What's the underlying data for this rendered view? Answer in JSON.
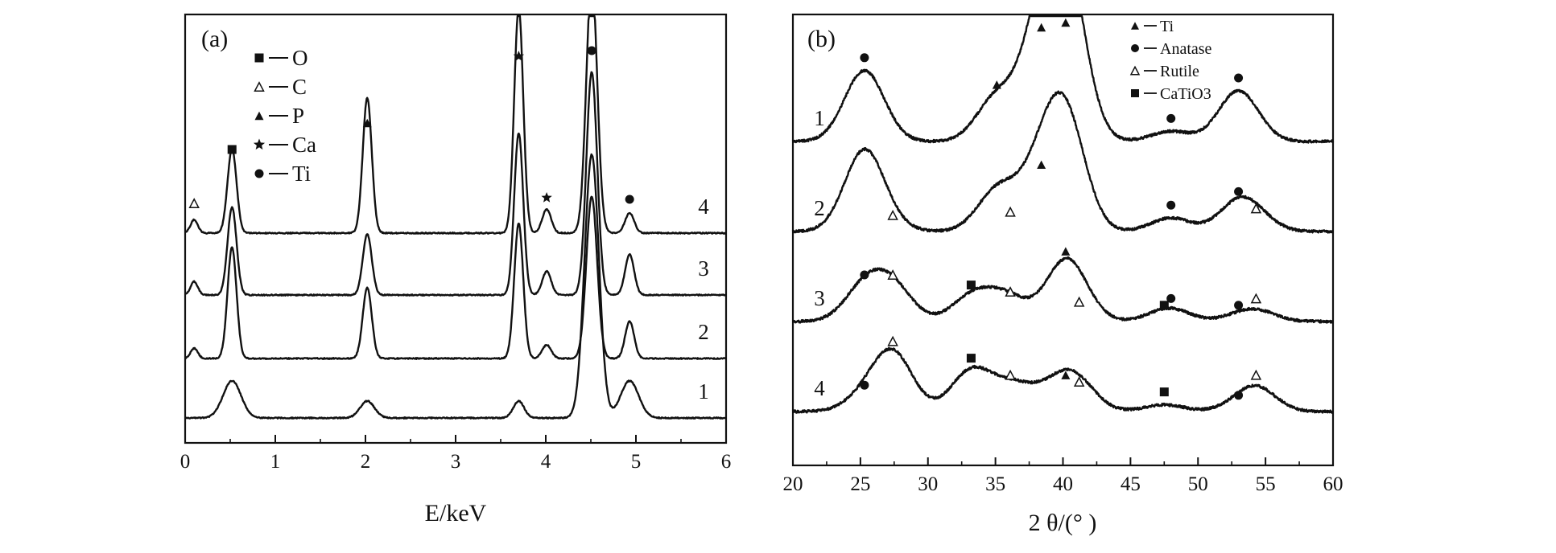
{
  "chart_data": [
    {
      "panel": "(a)",
      "type": "line",
      "xlabel": "E/keV",
      "xlim": [
        0,
        6
      ],
      "x_ticks": [
        "0",
        "1",
        "2",
        "3",
        "4",
        "5",
        "6"
      ],
      "ylabel": "",
      "grid": false,
      "legend": {
        "placement": "top-left",
        "entries": [
          {
            "name": "O",
            "marker": "square"
          },
          {
            "name": "C",
            "marker": "open-triangle"
          },
          {
            "name": "P",
            "marker": "filled-triangle"
          },
          {
            "name": "Ca",
            "marker": "star"
          },
          {
            "name": "Ti",
            "marker": "circle"
          }
        ]
      },
      "series": [
        {
          "name": "1",
          "peaks": [
            {
              "x": 0.52,
              "h": 0.11,
              "w": 0.1
            },
            {
              "x": 2.02,
              "h": 0.05,
              "w": 0.08
            },
            {
              "x": 3.7,
              "h": 0.05,
              "w": 0.06
            },
            {
              "x": 4.51,
              "h": 0.78,
              "w": 0.08
            },
            {
              "x": 4.93,
              "h": 0.11,
              "w": 0.1
            }
          ]
        },
        {
          "name": "2",
          "peaks": [
            {
              "x": 0.1,
              "h": 0.03,
              "w": 0.04
            },
            {
              "x": 0.52,
              "h": 0.33,
              "w": 0.05
            },
            {
              "x": 2.02,
              "h": 0.21,
              "w": 0.05
            },
            {
              "x": 3.7,
              "h": 0.4,
              "w": 0.05
            },
            {
              "x": 4.01,
              "h": 0.04,
              "w": 0.05
            },
            {
              "x": 4.51,
              "h": 0.48,
              "w": 0.06
            },
            {
              "x": 4.93,
              "h": 0.11,
              "w": 0.05
            }
          ]
        },
        {
          "name": "3",
          "peaks": [
            {
              "x": 0.1,
              "h": 0.04,
              "w": 0.04
            },
            {
              "x": 0.52,
              "h": 0.26,
              "w": 0.05
            },
            {
              "x": 2.02,
              "h": 0.18,
              "w": 0.05
            },
            {
              "x": 3.7,
              "h": 0.48,
              "w": 0.05
            },
            {
              "x": 4.01,
              "h": 0.07,
              "w": 0.05
            },
            {
              "x": 4.51,
              "h": 0.66,
              "w": 0.06
            },
            {
              "x": 4.93,
              "h": 0.12,
              "w": 0.05
            }
          ]
        },
        {
          "name": "4",
          "peaks": [
            {
              "x": 0.1,
              "h": 0.04,
              "w": 0.04
            },
            {
              "x": 0.52,
              "h": 0.25,
              "w": 0.05
            },
            {
              "x": 2.02,
              "h": 0.4,
              "w": 0.05
            },
            {
              "x": 3.7,
              "h": 0.67,
              "w": 0.05
            },
            {
              "x": 4.01,
              "h": 0.07,
              "w": 0.05
            },
            {
              "x": 4.51,
              "h": 0.76,
              "w": 0.06
            },
            {
              "x": 4.93,
              "h": 0.06,
              "w": 0.05
            }
          ]
        }
      ],
      "annotations": [
        {
          "x": 0.1,
          "marker": "open-triangle"
        },
        {
          "x": 0.52,
          "marker": "square"
        },
        {
          "x": 2.02,
          "marker": "filled-triangle"
        },
        {
          "x": 3.7,
          "marker": "star"
        },
        {
          "x": 4.01,
          "marker": "star"
        },
        {
          "x": 4.51,
          "marker": "circle"
        },
        {
          "x": 4.93,
          "marker": "circle"
        }
      ]
    },
    {
      "panel": "(b)",
      "type": "line",
      "xlabel": "2 θ/(° )",
      "xlim": [
        20,
        60
      ],
      "x_ticks": [
        "20",
        "25",
        "30",
        "35",
        "40",
        "45",
        "50",
        "55",
        "60"
      ],
      "ylabel": "",
      "grid": false,
      "legend": {
        "placement": "top-right",
        "entries": [
          {
            "name": "Ti",
            "marker": "filled-triangle"
          },
          {
            "name": "Anatase",
            "marker": "circle"
          },
          {
            "name": "Rutile",
            "marker": "open-triangle"
          },
          {
            "name": "CaTiO3",
            "marker": "square"
          }
        ]
      },
      "series": [
        {
          "name": "1",
          "peaks": [
            {
              "x": 25.3,
              "h": 0.21,
              "w": 0.22,
              "m": "circle"
            },
            {
              "x": 35.1,
              "h": 0.13,
              "w": 0.22,
              "m": "filled-triangle"
            },
            {
              "x": 38.4,
              "h": 0.3,
              "w": 0.22,
              "m": "filled-triangle"
            },
            {
              "x": 40.2,
              "h": 0.47,
              "w": 0.22,
              "m": "filled-triangle"
            },
            {
              "x": 48.0,
              "h": 0.03,
              "w": 0.22,
              "m": "circle"
            },
            {
              "x": 53.0,
              "h": 0.15,
              "w": 0.22,
              "m": "circle"
            }
          ]
        },
        {
          "name": "2",
          "peaks": [
            {
              "x": 25.3,
              "h": 0.24,
              "w": 0.22
            },
            {
              "x": 27.4,
              "h": 0.01,
              "w": 0.22,
              "m": "open-triangle"
            },
            {
              "x": 35.1,
              "h": 0.11,
              "w": 0.22
            },
            {
              "x": 36.1,
              "h": 0.02,
              "w": 0.22,
              "m": "open-triangle"
            },
            {
              "x": 38.4,
              "h": 0.16,
              "w": 0.22,
              "m": "filled-triangle"
            },
            {
              "x": 40.2,
              "h": 0.32,
              "w": 0.22
            },
            {
              "x": 48.0,
              "h": 0.04,
              "w": 0.22,
              "m": "circle"
            },
            {
              "x": 53.0,
              "h": 0.08,
              "w": 0.22,
              "m": "circle"
            },
            {
              "x": 54.3,
              "h": 0.03,
              "w": 0.22,
              "m": "open-triangle"
            }
          ]
        },
        {
          "name": "3",
          "peaks": [
            {
              "x": 25.3,
              "h": 0.1,
              "w": 0.22,
              "m": "circle"
            },
            {
              "x": 27.4,
              "h": 0.1,
              "w": 0.22,
              "m": "open-triangle"
            },
            {
              "x": 33.2,
              "h": 0.07,
              "w": 0.22,
              "m": "square"
            },
            {
              "x": 35.1,
              "h": 0.03,
              "w": 0.22
            },
            {
              "x": 36.1,
              "h": 0.05,
              "w": 0.22,
              "m": "open-triangle"
            },
            {
              "x": 40.2,
              "h": 0.17,
              "w": 0.22,
              "m": "filled-triangle"
            },
            {
              "x": 41.2,
              "h": 0.02,
              "w": 0.22,
              "m": "open-triangle"
            },
            {
              "x": 47.5,
              "h": 0.01,
              "w": 0.22,
              "m": "square"
            },
            {
              "x": 48.0,
              "h": 0.03,
              "w": 0.22,
              "m": "circle"
            },
            {
              "x": 53.0,
              "h": 0.01,
              "w": 0.22,
              "m": "circle"
            },
            {
              "x": 54.3,
              "h": 0.03,
              "w": 0.22,
              "m": "open-triangle"
            }
          ]
        },
        {
          "name": "4",
          "peaks": [
            {
              "x": 25.3,
              "h": 0.04,
              "w": 0.22,
              "m": "circle"
            },
            {
              "x": 27.4,
              "h": 0.17,
              "w": 0.22,
              "m": "open-triangle"
            },
            {
              "x": 33.2,
              "h": 0.12,
              "w": 0.22,
              "m": "square"
            },
            {
              "x": 36.1,
              "h": 0.07,
              "w": 0.22,
              "m": "open-triangle"
            },
            {
              "x": 38.3,
              "h": 0.03,
              "w": 0.22
            },
            {
              "x": 40.2,
              "h": 0.07,
              "w": 0.22,
              "m": "filled-triangle"
            },
            {
              "x": 41.2,
              "h": 0.05,
              "w": 0.22,
              "m": "open-triangle"
            },
            {
              "x": 47.5,
              "h": 0.02,
              "w": 0.22,
              "m": "square"
            },
            {
              "x": 53.0,
              "h": 0.01,
              "w": 0.22,
              "m": "circle"
            },
            {
              "x": 54.3,
              "h": 0.07,
              "w": 0.22,
              "m": "open-triangle"
            }
          ]
        }
      ]
    }
  ]
}
